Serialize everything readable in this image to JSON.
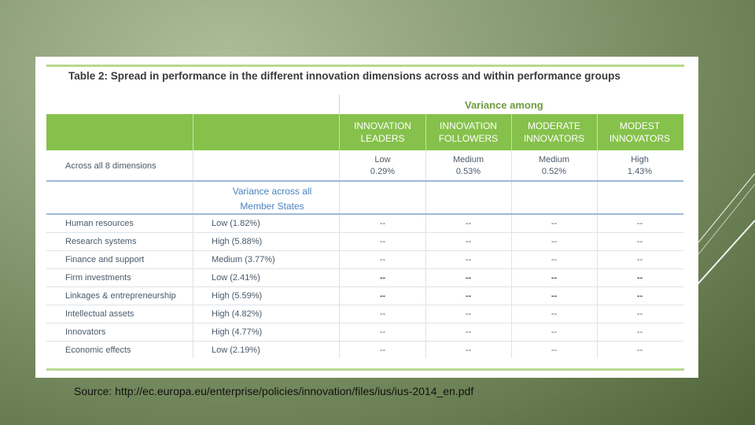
{
  "table": {
    "title": "Table 2: Spread in performance in the different innovation dimensions across and within performance groups",
    "variance_among": "Variance among",
    "groups": [
      {
        "name": "INNOVATION LEADERS",
        "line1": "INNOVATION",
        "line2": "LEADERS",
        "level": "Low",
        "value": "0.29%"
      },
      {
        "name": "INNOVATION FOLLOWERS",
        "line1": "INNOVATION",
        "line2": "FOLLOWERS",
        "level": "Medium",
        "value": "0.53%"
      },
      {
        "name": "MODERATE INNOVATORS",
        "line1": "MODERATE",
        "line2": "INNOVATORS",
        "level": "Medium",
        "value": "0.52%"
      },
      {
        "name": "MODEST INNOVATORS",
        "line1": "MODEST",
        "line2": "INNOVATORS",
        "level": "High",
        "value": "1.43%"
      }
    ],
    "across_label": "Across all 8 dimensions",
    "variance_member_states": {
      "line1": "Variance across all",
      "line2": "Member States"
    },
    "rows": [
      {
        "dimension": "Human resources",
        "variance": "Low (1.82%)",
        "cells": [
          "--",
          "--",
          "--",
          "--"
        ]
      },
      {
        "dimension": "Research systems",
        "variance": "High (5.88%)",
        "cells": [
          "--",
          "--",
          "--",
          "--"
        ]
      },
      {
        "dimension": "Finance and support",
        "variance": "Medium (3.77%)",
        "cells": [
          "--",
          "--",
          "--",
          "--"
        ]
      },
      {
        "dimension": "Firm investments",
        "variance": "Low (2.41%)",
        "cells": [
          "--",
          "--",
          "--",
          "--"
        ]
      },
      {
        "dimension": "Linkages & entrepreneurship",
        "variance": "High (5.59%)",
        "cells": [
          "--",
          "--",
          "--",
          "--"
        ]
      },
      {
        "dimension": "Intellectual assets",
        "variance": "High (4.82%)",
        "cells": [
          "--",
          "--",
          "--",
          "--"
        ]
      },
      {
        "dimension": "Innovators",
        "variance": "High (4.77%)",
        "cells": [
          "--",
          "--",
          "--",
          "--"
        ]
      },
      {
        "dimension": "Economic effects",
        "variance": "Low (2.19%)",
        "cells": [
          "--",
          "--",
          "--",
          "--"
        ]
      }
    ]
  },
  "source": "Source: http://ec.europa.eu/enterprise/policies/innovation/files/ius/ius-2014_en.pdf",
  "colors": {
    "header_green": "#86c14b",
    "title_green": "#6e9b3e",
    "link_blue": "#4a82c0",
    "background": "#6d8256"
  }
}
